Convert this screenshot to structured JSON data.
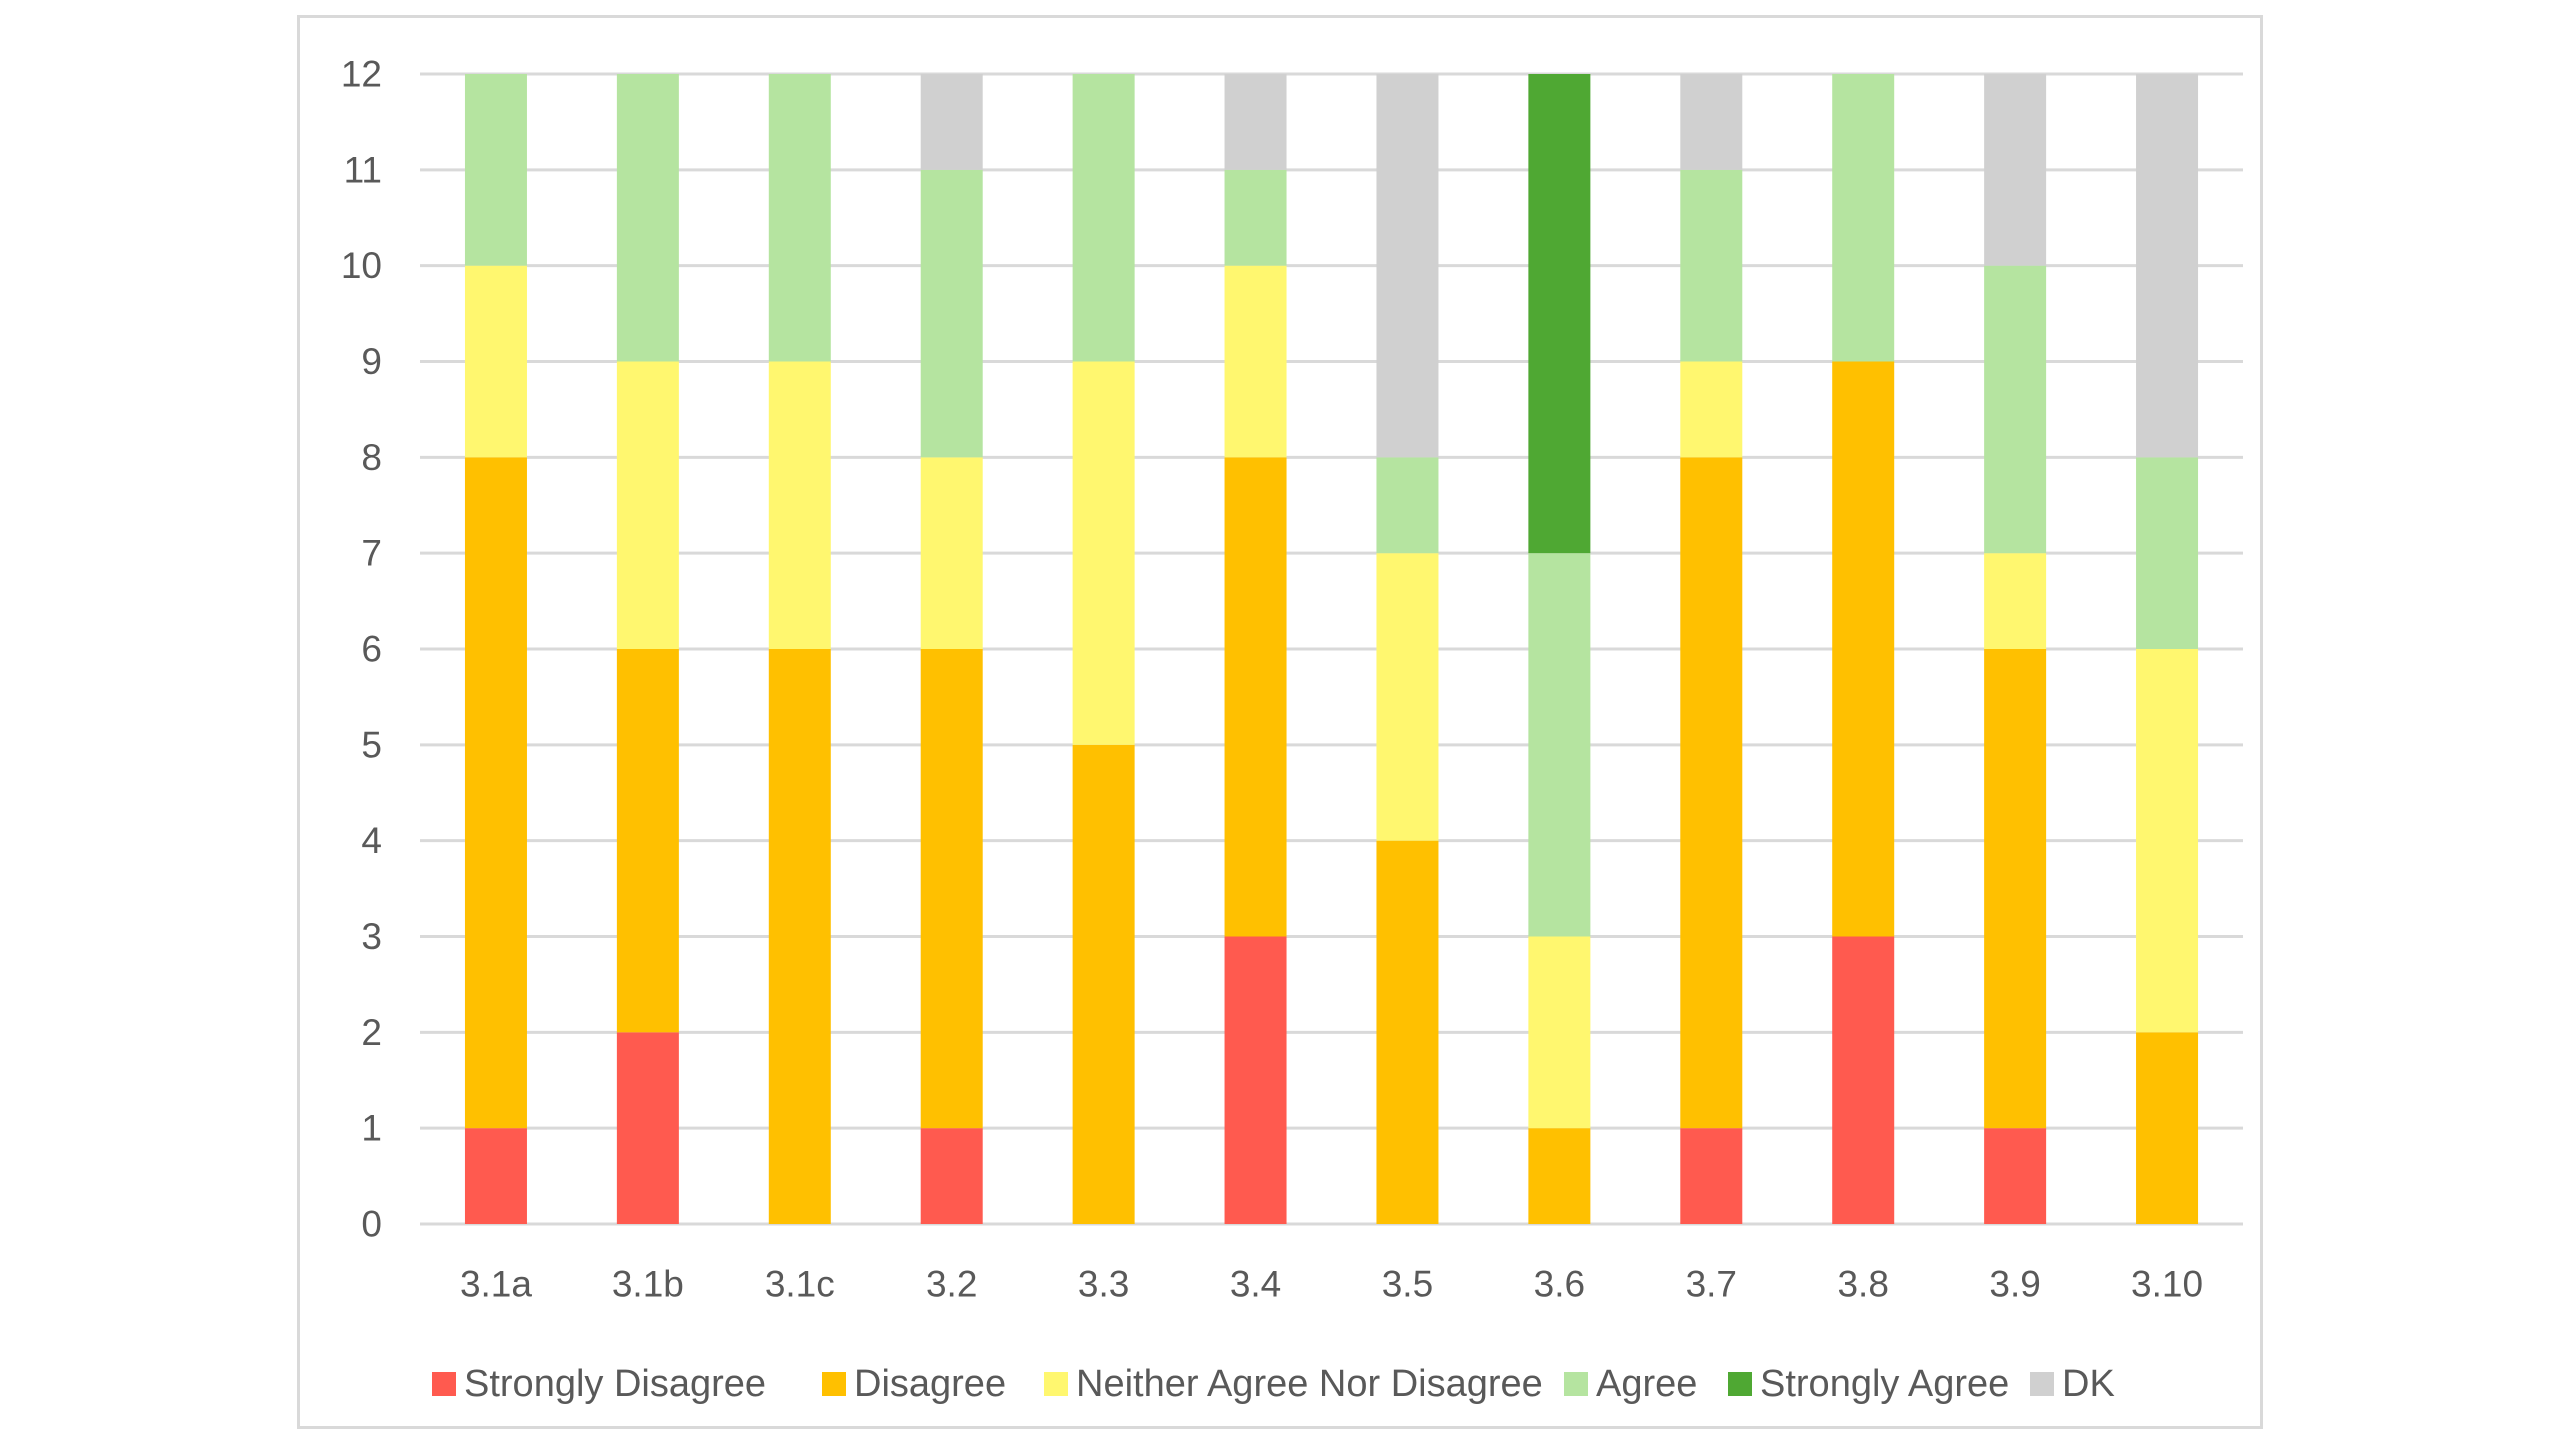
{
  "chart_data": {
    "type": "bar",
    "stacked": true,
    "categories": [
      "3.1a",
      "3.1b",
      "3.1c",
      "3.2",
      "3.3",
      "3.4",
      "3.5",
      "3.6",
      "3.7",
      "3.8",
      "3.9",
      "3.10"
    ],
    "series": [
      {
        "name": "Strongly Disagree",
        "color": "#ff5a4f",
        "values": [
          1,
          2,
          0,
          1,
          0,
          3,
          0,
          0,
          1,
          3,
          1,
          0
        ]
      },
      {
        "name": "Disagree",
        "color": "#ffc000",
        "values": [
          7,
          4,
          6,
          5,
          5,
          5,
          4,
          1,
          7,
          6,
          5,
          2
        ]
      },
      {
        "name": "Neither Agree Nor Disagree",
        "color": "#fff76f",
        "values": [
          2,
          3,
          3,
          2,
          4,
          2,
          3,
          2,
          1,
          0,
          1,
          4
        ]
      },
      {
        "name": "Agree",
        "color": "#b5e4a0",
        "values": [
          2,
          3,
          3,
          3,
          3,
          1,
          1,
          4,
          2,
          3,
          3,
          2
        ]
      },
      {
        "name": "Strongly Agree",
        "color": "#4fa833",
        "values": [
          0,
          0,
          0,
          0,
          0,
          0,
          0,
          5,
          0,
          0,
          0,
          0
        ]
      },
      {
        "name": "DK",
        "color": "#d0d0d0",
        "values": [
          0,
          0,
          0,
          1,
          0,
          1,
          4,
          0,
          1,
          0,
          2,
          4
        ]
      }
    ],
    "yticks": [
      "0",
      "1",
      "2",
      "3",
      "4",
      "5",
      "6",
      "7",
      "8",
      "9",
      "10",
      "11",
      "12"
    ],
    "ylim": [
      0,
      12
    ],
    "grid": true,
    "legend_position": "bottom",
    "title": "",
    "xlabel": "",
    "ylabel": ""
  }
}
